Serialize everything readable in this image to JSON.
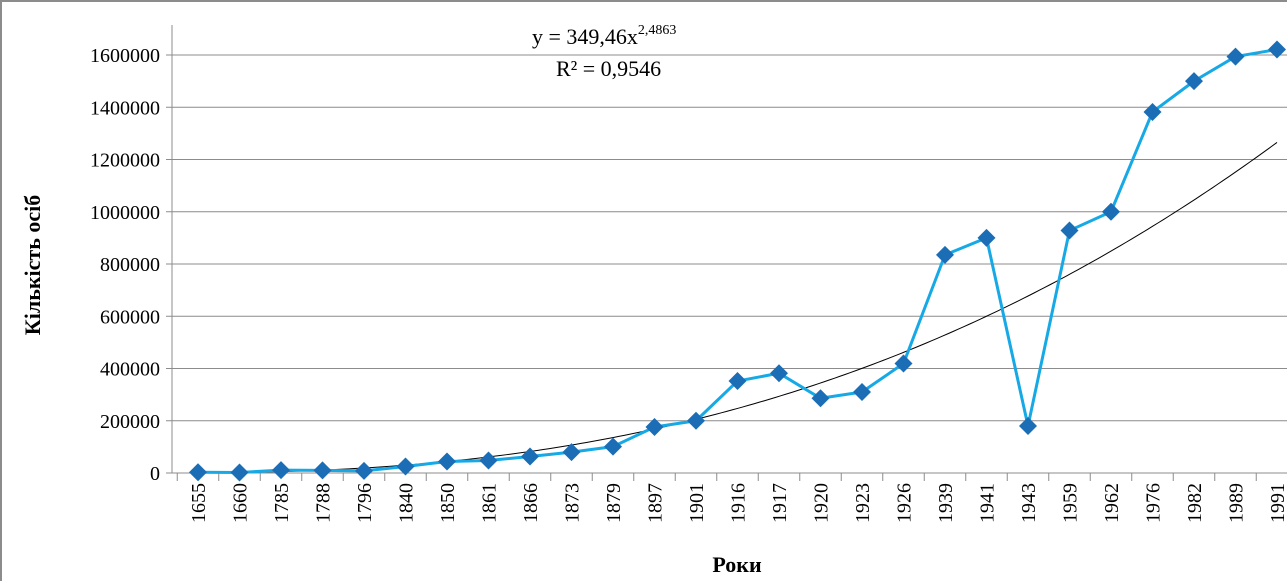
{
  "chart_data": {
    "type": "line",
    "xlabel": "Роки",
    "ylabel": "Кількість осіб",
    "ylim": [
      0,
      1600000
    ],
    "y_ticks": [
      "0",
      "200000",
      "400000",
      "600000",
      "800000",
      "1000000",
      "1200000",
      "1400000",
      "1600000"
    ],
    "y_tick_values": [
      0,
      200000,
      400000,
      600000,
      800000,
      1000000,
      1200000,
      1400000,
      1600000
    ],
    "grid": "horizontal",
    "categories": [
      "1655",
      "1660",
      "1785",
      "1788",
      "1796",
      "1840",
      "1850",
      "1861",
      "1866",
      "1873",
      "1879",
      "1897",
      "1901",
      "1916",
      "1917",
      "1920",
      "1923",
      "1926",
      "1939",
      "1941",
      "1943",
      "1959",
      "1962",
      "1976",
      "1982",
      "1989",
      "1991"
    ],
    "series": [
      {
        "color": "#16a9e6",
        "marker_color": "#1b6db6",
        "marker": "diamond",
        "values": [
          3000,
          2000,
          11000,
          10000,
          8000,
          25000,
          44000,
          48000,
          63000,
          80000,
          101000,
          176000,
          200000,
          352000,
          382000,
          286000,
          310000,
          419000,
          835000,
          900000,
          180000,
          928000,
          1000000,
          1382000,
          1500000,
          1594000,
          1621000
        ]
      }
    ],
    "trendline": {
      "type": "power",
      "color": "#000000",
      "coefficient": 349.46,
      "exponent": 2.4863,
      "equation_text": "y = 349,46x",
      "equation_exponent_text": "2,4863",
      "r2_text": "R² = 0,9546"
    }
  }
}
